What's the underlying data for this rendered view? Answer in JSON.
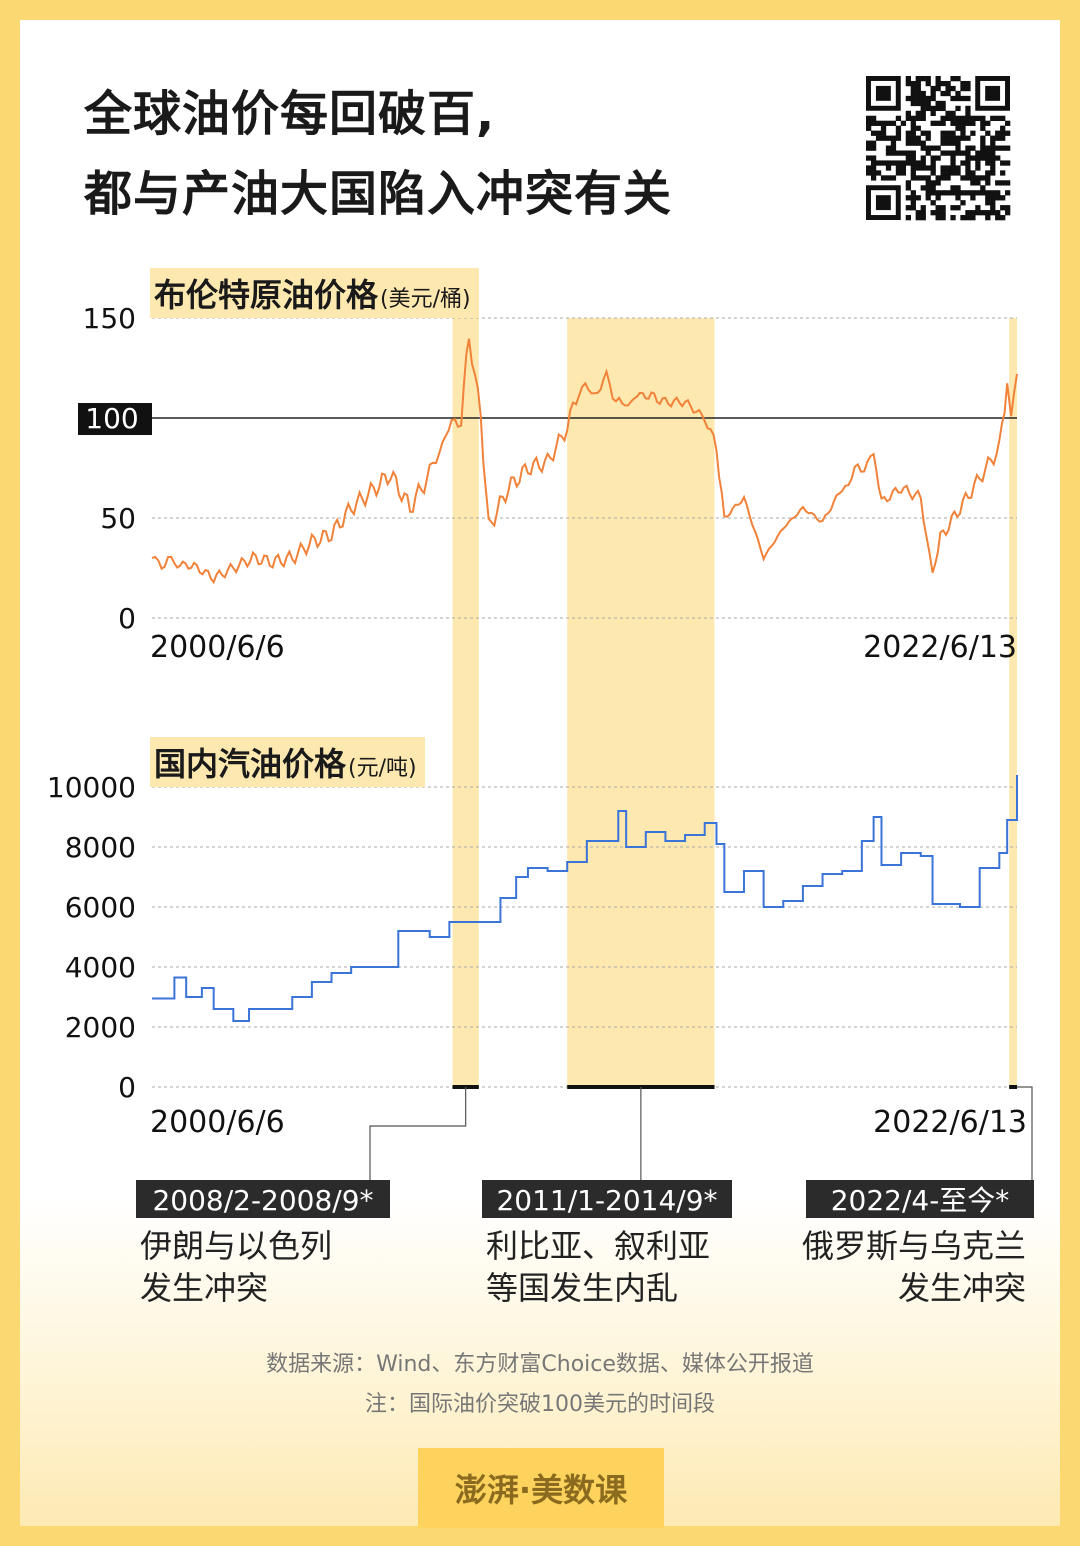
{
  "title": {
    "line1": "全球油价每回破百,",
    "line2": "都与产油大国陷入冲突有关"
  },
  "colors": {
    "brent_line": "#f0823a",
    "gasoline_line": "#3a74d8",
    "highlight": "#fde8b0",
    "frame": "#fcd872"
  },
  "chart_data": [
    {
      "type": "line",
      "name": "brent",
      "title": "布伦特原油价格",
      "unit": "(美元/桶)",
      "x_start": "2000/6/6",
      "x_end": "2022/6/13",
      "ylim": [
        0,
        150
      ],
      "yticks": [
        "150",
        "100",
        "50",
        "0"
      ],
      "reference_line": {
        "value": 100,
        "label": "100"
      },
      "grid": true,
      "x": [
        2000.43,
        2001.0,
        2001.5,
        2002.0,
        2002.5,
        2003.0,
        2003.5,
        2004.0,
        2004.5,
        2005.0,
        2005.5,
        2006.0,
        2006.5,
        2007.0,
        2007.5,
        2007.9,
        2008.3,
        2008.5,
        2008.8,
        2009.0,
        2009.5,
        2010.0,
        2010.5,
        2011.0,
        2011.3,
        2011.7,
        2012.0,
        2012.4,
        2012.7,
        2013.0,
        2013.5,
        2014.0,
        2014.5,
        2014.8,
        2015.0,
        2015.5,
        2016.0,
        2016.5,
        2017.0,
        2017.5,
        2018.0,
        2018.8,
        2019.0,
        2019.5,
        2020.0,
        2020.3,
        2020.5,
        2021.0,
        2021.5,
        2022.0,
        2022.2,
        2022.3,
        2022.45
      ],
      "values": [
        30,
        27,
        26,
        20,
        25,
        30,
        28,
        30,
        38,
        42,
        55,
        63,
        72,
        55,
        72,
        92,
        100,
        142,
        100,
        45,
        65,
        75,
        78,
        95,
        115,
        112,
        120,
        105,
        110,
        112,
        108,
        108,
        100,
        85,
        50,
        60,
        30,
        45,
        55,
        48,
        65,
        82,
        58,
        65,
        60,
        22,
        40,
        55,
        70,
        85,
        118,
        100,
        122
      ]
    },
    {
      "type": "line",
      "name": "gasoline",
      "title": "国内汽油价格",
      "unit": "(元/吨)",
      "x_start": "2000/6/6",
      "x_end": "2022/6/13",
      "ylim": [
        0,
        10000
      ],
      "yticks": [
        "10000",
        "8000",
        "6000",
        "4000",
        "2000",
        "0"
      ],
      "grid": true,
      "x": [
        2000.43,
        2001.0,
        2001.3,
        2001.7,
        2002.0,
        2002.5,
        2002.9,
        2003.5,
        2004.0,
        2004.5,
        2005.0,
        2005.5,
        2006.0,
        2006.3,
        2006.7,
        2007.5,
        2008.0,
        2008.5,
        2009.0,
        2009.3,
        2009.7,
        2010.0,
        2010.5,
        2011.0,
        2011.5,
        2012.0,
        2012.3,
        2012.5,
        2013.0,
        2013.5,
        2014.0,
        2014.5,
        2014.8,
        2015.0,
        2015.5,
        2016.0,
        2016.5,
        2017.0,
        2017.5,
        2018.0,
        2018.5,
        2018.8,
        2019.0,
        2019.5,
        2020.0,
        2020.3,
        2021.0,
        2021.5,
        2022.0,
        2022.2,
        2022.45
      ],
      "values": [
        2950,
        3650,
        3000,
        3300,
        2600,
        2200,
        2600,
        2600,
        3000,
        3500,
        3800,
        4000,
        4000,
        4000,
        5200,
        5000,
        5500,
        5500,
        5500,
        6300,
        7000,
        7300,
        7200,
        7500,
        8200,
        8200,
        9200,
        8000,
        8500,
        8200,
        8400,
        8800,
        8100,
        6500,
        7200,
        6000,
        6200,
        6700,
        7100,
        7200,
        8200,
        9000,
        7400,
        7800,
        7700,
        6100,
        6000,
        7300,
        7800,
        8900,
        10400
      ]
    }
  ],
  "periods": [
    {
      "label": "2008/2-2008/9*",
      "desc1": "伊朗与以色列",
      "desc2": "发生冲突",
      "start": 2008.08,
      "end": 2008.75
    },
    {
      "label": "2011/1-2014/9*",
      "desc1": "利比亚、叙利亚",
      "desc2": "等国发生内乱",
      "start": 2011.0,
      "end": 2014.75
    },
    {
      "label": "2022/4-至今*",
      "desc1": "俄罗斯与乌克兰",
      "desc2": "发生冲突",
      "start": 2022.25,
      "end": 2022.45
    }
  ],
  "footer": {
    "source": "数据来源：Wind、东方财富Choice数据、媒体公开报道",
    "note": "注：国际油价突破100美元的时间段",
    "logo": "澎湃·美数课"
  },
  "qr_icon": "qr-code-icon"
}
